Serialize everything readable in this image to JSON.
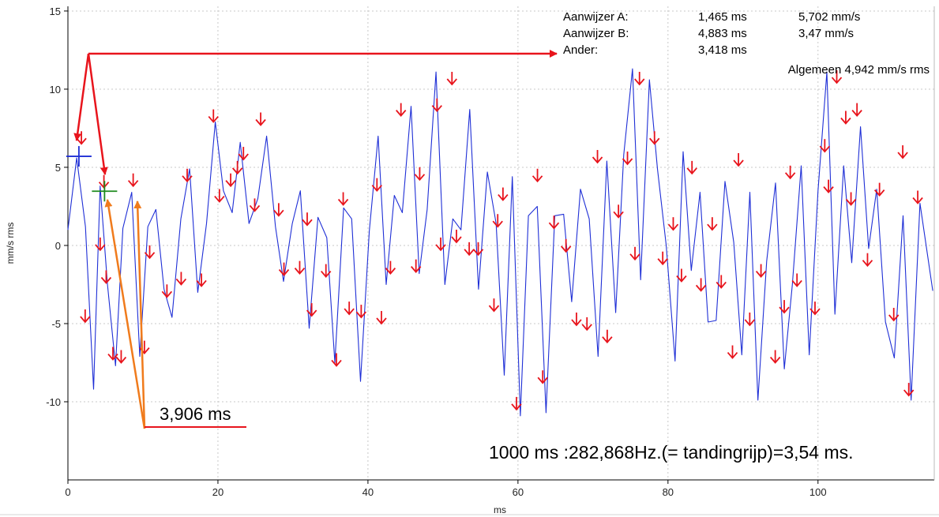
{
  "chart_data": {
    "type": "line",
    "title": "",
    "xlabel": "ms",
    "ylabel": "mm/s rms",
    "xlim": [
      0,
      115.5
    ],
    "ylim": [
      -15,
      15.3
    ],
    "x_ticks": [
      0,
      20,
      40,
      60,
      80,
      100
    ],
    "x_tick_labels": [
      "0",
      "20",
      "40",
      "60",
      "80",
      "100"
    ],
    "y_ticks": [
      15,
      10,
      5,
      0,
      -5,
      -10
    ],
    "y_tick_labels": [
      "15",
      "10",
      "5",
      "0",
      "-5",
      "-10"
    ],
    "grid": true,
    "series": [
      {
        "color": "#1f2fd6",
        "x": [
          0.0,
          1.17,
          2.34,
          3.42,
          4.3,
          5.28,
          6.35,
          7.33,
          8.51,
          9.58,
          10.66,
          11.73,
          12.81,
          13.88,
          15.06,
          16.23,
          17.31,
          18.48,
          19.65,
          20.73,
          21.9,
          22.97,
          24.14,
          25.32,
          26.49,
          27.67,
          28.74,
          29.91,
          30.99,
          32.16,
          33.33,
          34.51,
          35.59,
          36.76,
          37.83,
          39.01,
          40.18,
          41.36,
          42.43,
          43.51,
          44.58,
          45.75,
          46.83,
          47.9,
          49.07,
          50.25,
          51.32,
          52.4,
          53.57,
          54.74,
          55.92,
          57.09,
          58.17,
          59.24,
          60.32,
          61.39,
          62.57,
          63.74,
          64.91,
          66.09,
          67.16,
          68.33,
          69.5,
          70.68,
          71.85,
          73.03,
          74.1,
          75.27,
          76.35,
          77.52,
          78.6,
          79.77,
          80.94,
          82.02,
          83.1,
          84.27,
          85.35,
          86.42,
          87.6,
          88.77,
          89.84,
          90.92,
          91.99,
          93.16,
          94.34,
          95.51,
          96.58,
          97.76,
          98.83,
          100.0,
          101.18,
          102.25,
          103.42,
          104.5,
          105.67,
          106.75,
          107.82,
          108.99,
          110.17,
          111.34,
          112.42,
          113.59,
          115.3
        ],
        "y": [
          1.0,
          5.6,
          1.2,
          -9.2,
          3.8,
          -2.5,
          -7.7,
          1.1,
          3.4,
          -7.1,
          1.2,
          2.3,
          -2.8,
          -4.6,
          1.7,
          4.9,
          -3.0,
          1.4,
          7.9,
          3.5,
          2.1,
          6.6,
          1.4,
          3.0,
          7.0,
          1.2,
          -2.3,
          1.4,
          3.5,
          -5.3,
          1.8,
          0.5,
          -7.5,
          2.4,
          1.7,
          -8.7,
          0.9,
          7.0,
          -2.5,
          3.2,
          2.1,
          8.9,
          -1.8,
          2.3,
          11.1,
          -2.5,
          1.7,
          1.0,
          8.7,
          -2.8,
          4.7,
          1.4,
          -8.3,
          4.4,
          -10.9,
          1.9,
          2.5,
          -10.7,
          1.9,
          2.0,
          -3.6,
          3.6,
          1.7,
          -7.1,
          5.4,
          -4.3,
          5.8,
          11.3,
          -2.2,
          10.6,
          4.9,
          0.0,
          -7.4,
          6.0,
          -1.6,
          3.4,
          -4.9,
          -4.8,
          4.1,
          0.2,
          -7.0,
          3.4,
          -9.9,
          -1.0,
          4.0,
          -7.9,
          -2.5,
          5.1,
          -7.0,
          3.5,
          11.1,
          -4.4,
          5.1,
          -1.1,
          7.6,
          -0.2,
          3.6,
          -4.9,
          -7.2,
          1.9,
          -9.9,
          2.7,
          -2.9
        ]
      }
    ],
    "info_box": {
      "rows": [
        {
          "label": "Aanwijzer A:",
          "time": "1,465 ms",
          "value": "5,702 mm/s"
        },
        {
          "label": "Aanwijzer B:",
          "time": "4,883 ms",
          "value": "3,47 mm/s"
        },
        {
          "label": "Ander:",
          "time": "3,418 ms",
          "value": ""
        }
      ],
      "overall": "Algemeen 4,942 mm/s rms"
    },
    "annotations": {
      "period_label": "3,906 ms",
      "note": "1000 ms :282,868Hz.(= tandingrijp)=3,54 ms."
    },
    "harmonic_markers": {
      "color": "#e8141c",
      "positions": [
        [
          1.8,
          6.5
        ],
        [
          4.8,
          3.7
        ],
        [
          8.7,
          3.8
        ],
        [
          2.3,
          -4.9
        ],
        [
          4.3,
          -0.3
        ],
        [
          5.1,
          -2.4
        ],
        [
          6.0,
          -7.3
        ],
        [
          7.1,
          -7.5
        ],
        [
          10.2,
          -6.9
        ],
        [
          10.9,
          -0.8
        ],
        [
          13.2,
          -3.3
        ],
        [
          15.1,
          -2.5
        ],
        [
          15.9,
          4.1
        ],
        [
          17.8,
          -2.6
        ],
        [
          19.4,
          7.9
        ],
        [
          20.2,
          2.8
        ],
        [
          21.7,
          3.8
        ],
        [
          22.6,
          4.6
        ],
        [
          23.4,
          5.5
        ],
        [
          24.9,
          2.2
        ],
        [
          25.7,
          7.7
        ],
        [
          28.1,
          1.9
        ],
        [
          28.8,
          -1.9
        ],
        [
          30.9,
          -1.8
        ],
        [
          31.9,
          1.3
        ],
        [
          32.5,
          -4.5
        ],
        [
          34.4,
          -2.0
        ],
        [
          35.8,
          -7.7
        ],
        [
          36.7,
          2.6
        ],
        [
          37.5,
          -4.4
        ],
        [
          39.1,
          -4.6
        ],
        [
          41.2,
          3.5
        ],
        [
          41.8,
          -5.0
        ],
        [
          43.0,
          -1.8
        ],
        [
          44.4,
          8.3
        ],
        [
          46.4,
          -1.7
        ],
        [
          46.9,
          4.2
        ],
        [
          49.2,
          8.6
        ],
        [
          49.7,
          -0.3
        ],
        [
          51.2,
          10.3
        ],
        [
          51.8,
          0.2
        ],
        [
          53.5,
          -0.6
        ],
        [
          54.7,
          -0.6
        ],
        [
          56.8,
          -4.2
        ],
        [
          57.3,
          1.2
        ],
        [
          58.0,
          2.9
        ],
        [
          59.8,
          -10.5
        ],
        [
          62.6,
          4.1
        ],
        [
          63.3,
          -8.8
        ],
        [
          64.8,
          1.1
        ],
        [
          66.4,
          -0.4
        ],
        [
          67.8,
          -5.1
        ],
        [
          69.2,
          -5.4
        ],
        [
          70.6,
          5.3
        ],
        [
          71.9,
          -6.2
        ],
        [
          73.4,
          1.8
        ],
        [
          74.6,
          5.2
        ],
        [
          75.6,
          -0.9
        ],
        [
          76.2,
          10.3
        ],
        [
          78.2,
          6.5
        ],
        [
          79.3,
          -1.2
        ],
        [
          80.7,
          1.0
        ],
        [
          81.8,
          -2.3
        ],
        [
          83.2,
          4.6
        ],
        [
          84.4,
          -2.9
        ],
        [
          85.9,
          1.0
        ],
        [
          87.1,
          -2.7
        ],
        [
          88.6,
          -7.2
        ],
        [
          89.4,
          5.1
        ],
        [
          90.9,
          -5.1
        ],
        [
          92.4,
          -2.0
        ],
        [
          94.3,
          -7.5
        ],
        [
          95.5,
          -4.3
        ],
        [
          96.3,
          4.3
        ],
        [
          97.2,
          -2.6
        ],
        [
          99.6,
          -4.4
        ],
        [
          100.9,
          6.0
        ],
        [
          101.4,
          3.4
        ],
        [
          102.5,
          10.4
        ],
        [
          103.7,
          7.8
        ],
        [
          104.4,
          2.6
        ],
        [
          105.2,
          8.3
        ],
        [
          106.6,
          -1.3
        ],
        [
          108.2,
          3.2
        ],
        [
          110.1,
          -4.8
        ],
        [
          111.3,
          5.6
        ],
        [
          112.1,
          -9.6
        ],
        [
          113.3,
          2.7
        ]
      ]
    },
    "cursor_a": {
      "x": 1.465,
      "y": 5.702,
      "color": "#1f2fd6"
    },
    "cursor_b": {
      "x": 4.883,
      "y": 3.47,
      "color": "#1d8a1d"
    }
  }
}
